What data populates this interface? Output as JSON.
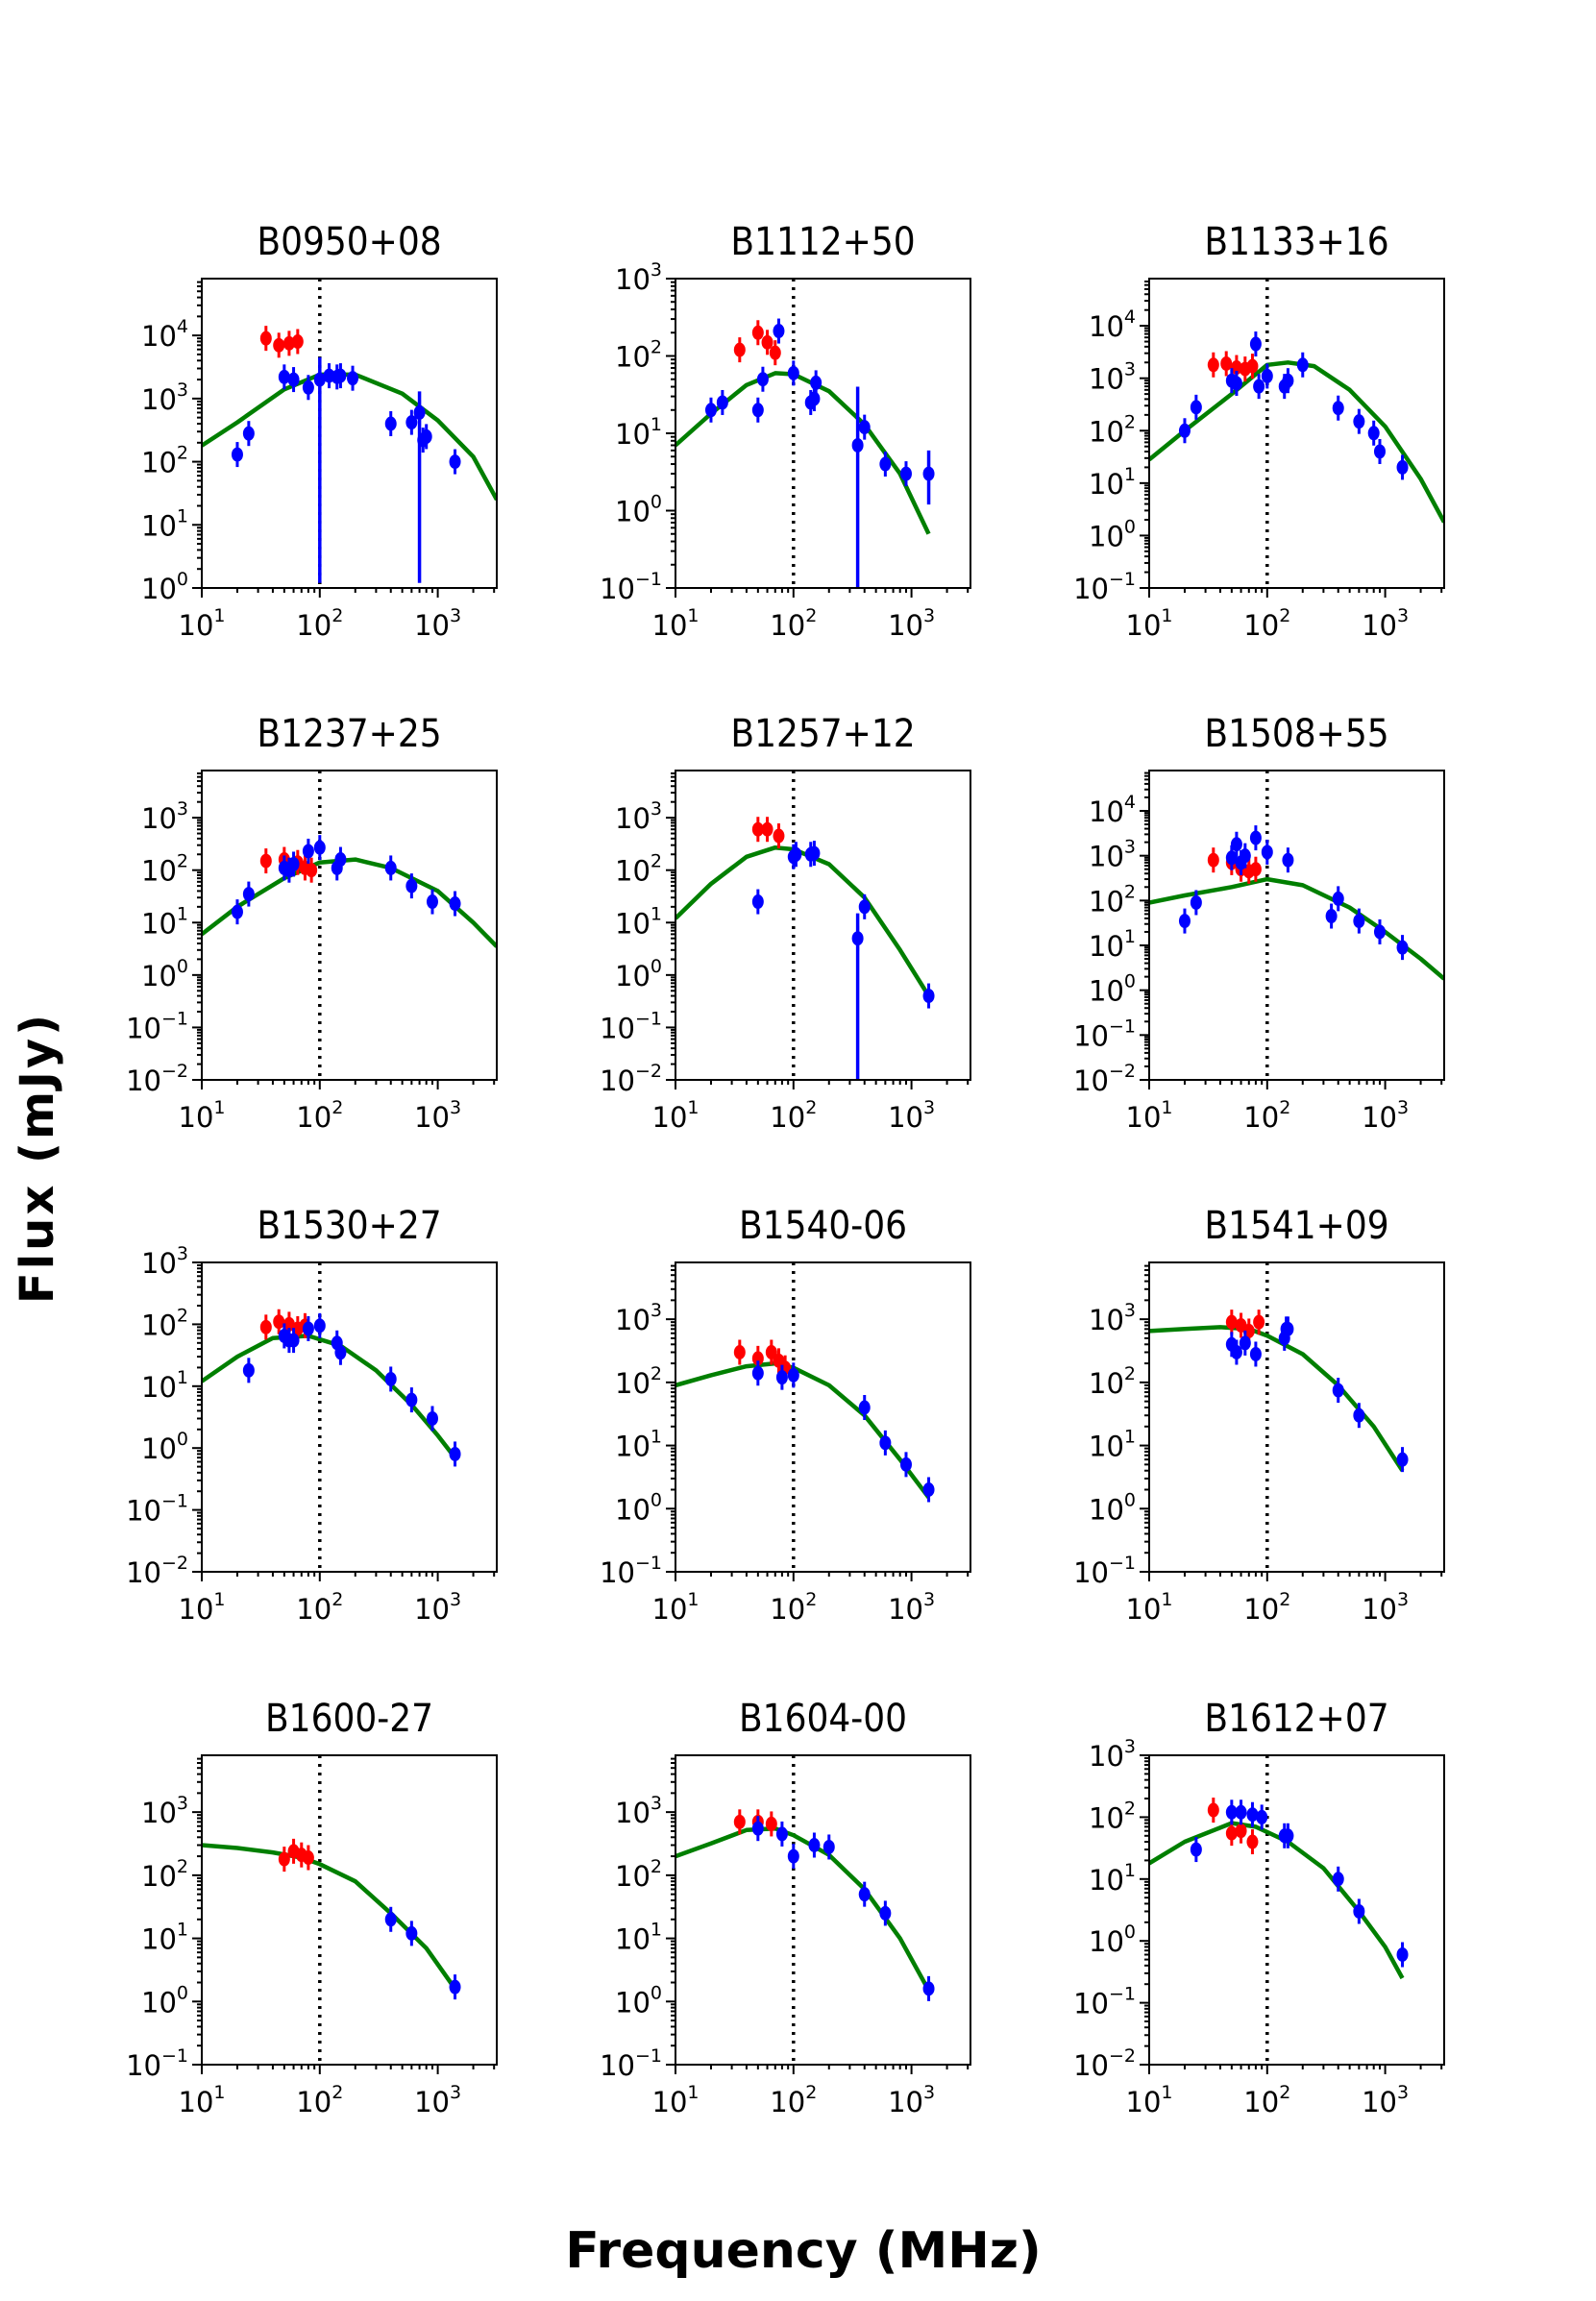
{
  "figure": {
    "xlabel": "Frequency (MHz)",
    "ylabel": "Flux (mJy)"
  },
  "colors": {
    "fit": "#007f00",
    "lofar": "#ff0000",
    "literature": "#0000ff",
    "turnover": "#000000"
  },
  "chart_data": [
    {
      "type": "scatter",
      "title": "B0950+08",
      "xlim_log10": [
        1,
        3.5
      ],
      "ylim_log10": [
        0,
        4.9
      ],
      "yticks": [
        0,
        1,
        2,
        3,
        4
      ],
      "vline": 100,
      "red": [
        [
          35,
          9000
        ],
        [
          45,
          7000
        ],
        [
          55,
          7500
        ],
        [
          65,
          8000
        ]
      ],
      "blue": [
        [
          20,
          130
        ],
        [
          25,
          280
        ],
        [
          50,
          2200
        ],
        [
          60,
          2000
        ],
        [
          80,
          1500
        ],
        [
          100,
          2000
        ],
        [
          120,
          2300
        ],
        [
          140,
          2200
        ],
        [
          150,
          2300
        ],
        [
          190,
          2100
        ],
        [
          400,
          400
        ],
        [
          600,
          420
        ],
        [
          700,
          600
        ],
        [
          750,
          220
        ],
        [
          800,
          250
        ],
        [
          1400,
          100
        ]
      ],
      "blue_err": [
        [
          100,
          1.2,
          4500
        ],
        [
          700,
          1.2,
          1300
        ]
      ],
      "fit": [
        [
          10,
          180
        ],
        [
          20,
          420
        ],
        [
          50,
          1400
        ],
        [
          100,
          2400
        ],
        [
          200,
          2400
        ],
        [
          500,
          1200
        ],
        [
          1000,
          450
        ],
        [
          2000,
          120
        ],
        [
          3160,
          25
        ]
      ]
    },
    {
      "type": "scatter",
      "title": "B1112+50",
      "xlim_log10": [
        1,
        3.5
      ],
      "ylim_log10": [
        -1,
        3
      ],
      "yticks": [
        -1,
        0,
        1,
        2,
        3
      ],
      "vline": 100,
      "red": [
        [
          35,
          120
        ],
        [
          50,
          200
        ],
        [
          60,
          150
        ],
        [
          70,
          110
        ]
      ],
      "blue": [
        [
          20,
          20
        ],
        [
          25,
          25
        ],
        [
          50,
          20
        ],
        [
          55,
          50
        ],
        [
          75,
          210
        ],
        [
          100,
          60
        ],
        [
          140,
          25
        ],
        [
          150,
          28
        ],
        [
          155,
          45
        ],
        [
          350,
          7
        ],
        [
          400,
          12
        ],
        [
          600,
          4
        ],
        [
          900,
          3
        ],
        [
          1400,
          3
        ]
      ],
      "blue_err": [
        [
          350,
          0.1,
          40
        ],
        [
          1400,
          1.2,
          6
        ]
      ],
      "fit": [
        [
          10,
          7
        ],
        [
          20,
          18
        ],
        [
          40,
          42
        ],
        [
          70,
          60
        ],
        [
          100,
          58
        ],
        [
          200,
          35
        ],
        [
          400,
          13
        ],
        [
          800,
          3
        ],
        [
          1400,
          0.5
        ]
      ]
    },
    {
      "type": "scatter",
      "title": "B1133+16",
      "xlim_log10": [
        1,
        3.5
      ],
      "ylim_log10": [
        -1,
        4.9
      ],
      "yticks": [
        -1,
        0,
        1,
        2,
        3,
        4
      ],
      "vline": 100,
      "red": [
        [
          35,
          1800
        ],
        [
          45,
          1900
        ],
        [
          55,
          1600
        ],
        [
          65,
          1500
        ],
        [
          75,
          1700
        ]
      ],
      "blue": [
        [
          20,
          100
        ],
        [
          25,
          280
        ],
        [
          50,
          900
        ],
        [
          55,
          800
        ],
        [
          80,
          4500
        ],
        [
          85,
          700
        ],
        [
          100,
          1100
        ],
        [
          140,
          700
        ],
        [
          150,
          900
        ],
        [
          200,
          1800
        ],
        [
          400,
          270
        ],
        [
          600,
          150
        ],
        [
          800,
          90
        ],
        [
          900,
          40
        ],
        [
          1400,
          20
        ]
      ],
      "blue_err": [],
      "fit": [
        [
          10,
          28
        ],
        [
          20,
          100
        ],
        [
          50,
          500
        ],
        [
          100,
          1800
        ],
        [
          150,
          2000
        ],
        [
          250,
          1700
        ],
        [
          500,
          600
        ],
        [
          1000,
          120
        ],
        [
          2000,
          12
        ],
        [
          3160,
          1.8
        ]
      ]
    },
    {
      "type": "scatter",
      "title": "B1237+25",
      "xlim_log10": [
        1,
        3.5
      ],
      "ylim_log10": [
        -2,
        3.9
      ],
      "yticks": [
        -2,
        -1,
        0,
        1,
        2,
        3
      ],
      "vline": 100,
      "red": [
        [
          35,
          150
        ],
        [
          50,
          160
        ],
        [
          65,
          140
        ],
        [
          75,
          110
        ],
        [
          85,
          100
        ]
      ],
      "blue": [
        [
          20,
          16
        ],
        [
          25,
          35
        ],
        [
          50,
          110
        ],
        [
          55,
          100
        ],
        [
          60,
          130
        ],
        [
          80,
          230
        ],
        [
          100,
          270
        ],
        [
          140,
          110
        ],
        [
          150,
          160
        ],
        [
          400,
          110
        ],
        [
          600,
          50
        ],
        [
          900,
          25
        ],
        [
          1400,
          23
        ]
      ],
      "blue_err": [],
      "fit": [
        [
          10,
          6
        ],
        [
          20,
          20
        ],
        [
          50,
          70
        ],
        [
          100,
          140
        ],
        [
          200,
          160
        ],
        [
          400,
          110
        ],
        [
          1000,
          40
        ],
        [
          2000,
          10
        ],
        [
          3160,
          3.5
        ]
      ]
    },
    {
      "type": "scatter",
      "title": "B1257+12",
      "xlim_log10": [
        1,
        3.5
      ],
      "ylim_log10": [
        -2,
        3.9
      ],
      "yticks": [
        -2,
        -1,
        0,
        1,
        2,
        3
      ],
      "vline": 100,
      "red": [
        [
          50,
          600
        ],
        [
          60,
          600
        ],
        [
          75,
          450
        ]
      ],
      "blue": [
        [
          50,
          25
        ],
        [
          100,
          180
        ],
        [
          105,
          200
        ],
        [
          140,
          200
        ],
        [
          150,
          210
        ],
        [
          350,
          5
        ],
        [
          400,
          20
        ],
        [
          1400,
          0.4
        ]
      ],
      "blue_err": [
        [
          350,
          0.01,
          15
        ]
      ],
      "fit": [
        [
          10,
          12
        ],
        [
          20,
          55
        ],
        [
          40,
          180
        ],
        [
          70,
          270
        ],
        [
          100,
          250
        ],
        [
          200,
          130
        ],
        [
          400,
          30
        ],
        [
          800,
          3
        ],
        [
          1400,
          0.4
        ]
      ]
    },
    {
      "type": "scatter",
      "title": "B1508+55",
      "xlim_log10": [
        1,
        3.5
      ],
      "ylim_log10": [
        -2,
        4.9
      ],
      "yticks": [
        -2,
        -1,
        0,
        1,
        2,
        3,
        4
      ],
      "vline": 100,
      "red": [
        [
          35,
          800
        ],
        [
          50,
          700
        ],
        [
          60,
          500
        ],
        [
          70,
          450
        ],
        [
          80,
          500
        ]
      ],
      "blue": [
        [
          20,
          35
        ],
        [
          25,
          90
        ],
        [
          50,
          900
        ],
        [
          55,
          1800
        ],
        [
          60,
          700
        ],
        [
          65,
          1000
        ],
        [
          80,
          2500
        ],
        [
          100,
          1200
        ],
        [
          150,
          800
        ],
        [
          350,
          45
        ],
        [
          400,
          110
        ],
        [
          600,
          35
        ],
        [
          900,
          20
        ],
        [
          1400,
          9
        ]
      ],
      "blue_err": [],
      "fit": [
        [
          10,
          90
        ],
        [
          20,
          130
        ],
        [
          50,
          200
        ],
        [
          100,
          300
        ],
        [
          200,
          220
        ],
        [
          500,
          70
        ],
        [
          1000,
          20
        ],
        [
          2000,
          5
        ],
        [
          3160,
          1.8
        ]
      ]
    },
    {
      "type": "scatter",
      "title": "B1530+27",
      "xlim_log10": [
        1,
        3.5
      ],
      "ylim_log10": [
        -2,
        3
      ],
      "yticks": [
        -2,
        -1,
        0,
        1,
        2,
        3
      ],
      "vline": 100,
      "red": [
        [
          35,
          90
        ],
        [
          45,
          110
        ],
        [
          55,
          100
        ],
        [
          65,
          85
        ],
        [
          75,
          95
        ]
      ],
      "blue": [
        [
          25,
          18
        ],
        [
          50,
          65
        ],
        [
          55,
          55
        ],
        [
          60,
          55
        ],
        [
          80,
          85
        ],
        [
          100,
          95
        ],
        [
          140,
          50
        ],
        [
          150,
          35
        ],
        [
          400,
          13
        ],
        [
          600,
          6
        ],
        [
          900,
          3
        ],
        [
          1400,
          0.8
        ]
      ],
      "blue_err": [],
      "fit": [
        [
          10,
          12
        ],
        [
          20,
          30
        ],
        [
          40,
          60
        ],
        [
          80,
          65
        ],
        [
          150,
          45
        ],
        [
          300,
          18
        ],
        [
          600,
          5
        ],
        [
          1000,
          1.6
        ],
        [
          1400,
          0.7
        ]
      ]
    },
    {
      "type": "scatter",
      "title": "B1540-06",
      "xlim_log10": [
        1,
        3.5
      ],
      "ylim_log10": [
        -1,
        3.9
      ],
      "yticks": [
        -1,
        0,
        1,
        2,
        3
      ],
      "vline": 100,
      "red": [
        [
          35,
          300
        ],
        [
          50,
          240
        ],
        [
          65,
          300
        ],
        [
          75,
          220
        ],
        [
          85,
          170
        ]
      ],
      "blue": [
        [
          50,
          140
        ],
        [
          80,
          120
        ],
        [
          100,
          130
        ],
        [
          400,
          40
        ],
        [
          600,
          11
        ],
        [
          900,
          5
        ],
        [
          1400,
          2
        ]
      ],
      "blue_err": [],
      "fit": [
        [
          10,
          90
        ],
        [
          20,
          130
        ],
        [
          40,
          180
        ],
        [
          70,
          200
        ],
        [
          100,
          170
        ],
        [
          200,
          90
        ],
        [
          400,
          30
        ],
        [
          800,
          6
        ],
        [
          1400,
          1.5
        ]
      ]
    },
    {
      "type": "scatter",
      "title": "B1541+09",
      "xlim_log10": [
        1,
        3.5
      ],
      "ylim_log10": [
        -1,
        3.9
      ],
      "yticks": [
        -1,
        0,
        1,
        2,
        3
      ],
      "vline": 100,
      "red": [
        [
          50,
          900
        ],
        [
          60,
          800
        ],
        [
          70,
          650
        ],
        [
          85,
          900
        ]
      ],
      "blue": [
        [
          50,
          400
        ],
        [
          55,
          300
        ],
        [
          65,
          420
        ],
        [
          80,
          280
        ],
        [
          140,
          500
        ],
        [
          145,
          700
        ],
        [
          150,
          700
        ],
        [
          400,
          75
        ],
        [
          600,
          30
        ],
        [
          1400,
          6
        ]
      ],
      "blue_err": [],
      "fit": [
        [
          10,
          650
        ],
        [
          20,
          700
        ],
        [
          40,
          750
        ],
        [
          70,
          700
        ],
        [
          100,
          550
        ],
        [
          200,
          280
        ],
        [
          400,
          90
        ],
        [
          800,
          20
        ],
        [
          1400,
          4
        ]
      ]
    },
    {
      "type": "scatter",
      "title": "B1600-27",
      "xlim_log10": [
        1,
        3.5
      ],
      "ylim_log10": [
        -1,
        3.9
      ],
      "yticks": [
        -1,
        0,
        1,
        2,
        3
      ],
      "vline": 100,
      "red": [
        [
          50,
          180
        ],
        [
          60,
          240
        ],
        [
          70,
          210
        ],
        [
          80,
          190
        ]
      ],
      "blue": [
        [
          400,
          20
        ],
        [
          600,
          12
        ],
        [
          1400,
          1.7
        ]
      ],
      "blue_err": [],
      "fit": [
        [
          10,
          300
        ],
        [
          20,
          270
        ],
        [
          40,
          230
        ],
        [
          70,
          190
        ],
        [
          100,
          150
        ],
        [
          200,
          80
        ],
        [
          400,
          25
        ],
        [
          800,
          7
        ],
        [
          1400,
          1.6
        ]
      ]
    },
    {
      "type": "scatter",
      "title": "B1604-00",
      "xlim_log10": [
        1,
        3.5
      ],
      "ylim_log10": [
        -1,
        3.9
      ],
      "yticks": [
        -1,
        0,
        1,
        2,
        3
      ],
      "vline": 100,
      "red": [
        [
          35,
          700
        ],
        [
          50,
          700
        ],
        [
          65,
          650
        ]
      ],
      "blue": [
        [
          50,
          550
        ],
        [
          80,
          450
        ],
        [
          100,
          200
        ],
        [
          150,
          300
        ],
        [
          200,
          280
        ],
        [
          400,
          50
        ],
        [
          600,
          25
        ],
        [
          1400,
          1.6
        ]
      ],
      "blue_err": [],
      "fit": [
        [
          10,
          200
        ],
        [
          20,
          320
        ],
        [
          40,
          520
        ],
        [
          70,
          550
        ],
        [
          100,
          430
        ],
        [
          200,
          210
        ],
        [
          400,
          60
        ],
        [
          800,
          10
        ],
        [
          1400,
          1.5
        ]
      ]
    },
    {
      "type": "scatter",
      "title": "B1612+07",
      "xlim_log10": [
        1,
        3.5
      ],
      "ylim_log10": [
        -2,
        3
      ],
      "yticks": [
        -2,
        -1,
        0,
        1,
        2,
        3
      ],
      "vline": 100,
      "red": [
        [
          35,
          130
        ],
        [
          50,
          55
        ],
        [
          60,
          60
        ],
        [
          75,
          40
        ]
      ],
      "blue": [
        [
          25,
          30
        ],
        [
          50,
          120
        ],
        [
          60,
          120
        ],
        [
          75,
          110
        ],
        [
          90,
          100
        ],
        [
          140,
          50
        ],
        [
          150,
          50
        ],
        [
          400,
          10
        ],
        [
          600,
          3
        ],
        [
          1400,
          0.6
        ]
      ],
      "blue_err": [],
      "fit": [
        [
          10,
          18
        ],
        [
          20,
          40
        ],
        [
          50,
          80
        ],
        [
          80,
          70
        ],
        [
          150,
          40
        ],
        [
          300,
          15
        ],
        [
          600,
          3
        ],
        [
          1000,
          0.8
        ],
        [
          1400,
          0.25
        ]
      ]
    }
  ]
}
